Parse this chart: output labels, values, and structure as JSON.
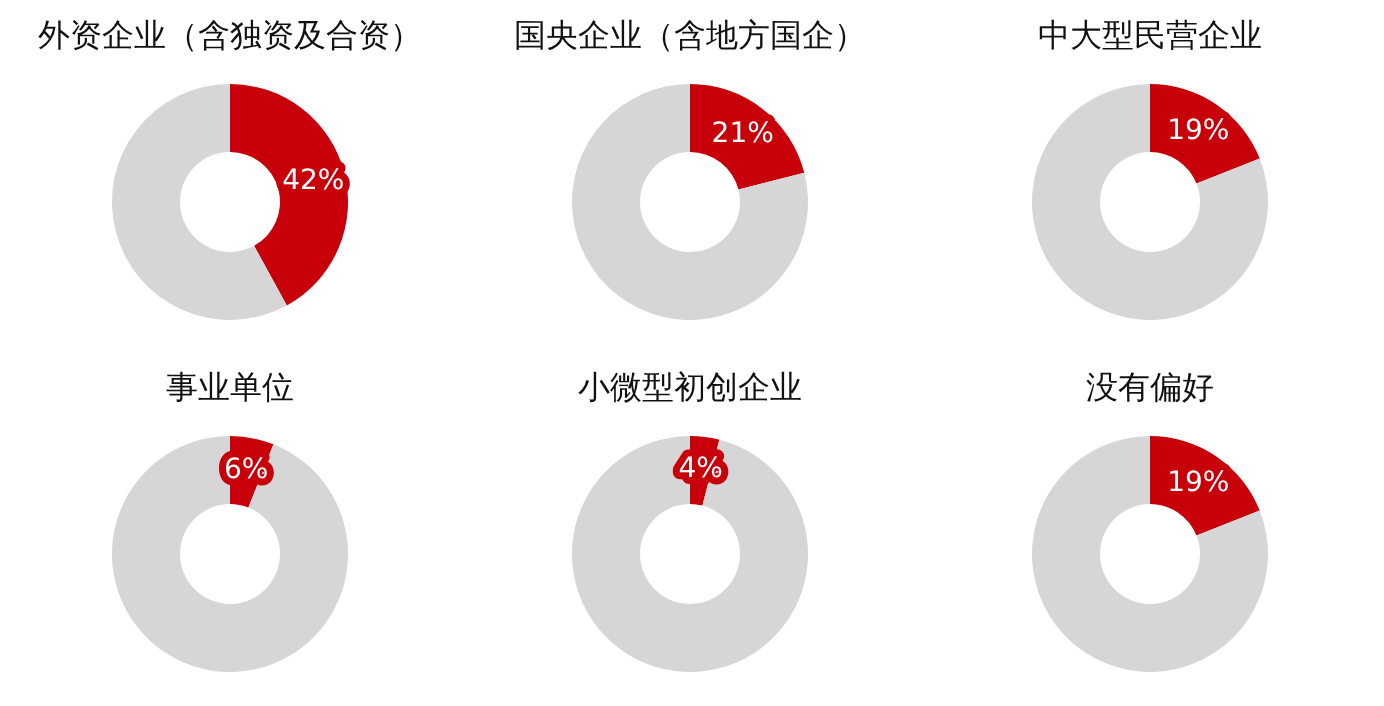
{
  "chart_data": [
    {
      "type": "donut",
      "title": "外资企业（含独资及合资）",
      "categories": [
        null,
        null
      ],
      "values": [
        42,
        58
      ],
      "colors": [
        "#c8000a",
        "#d6d6d6"
      ],
      "value_labels": [
        "42%",
        null
      ]
    },
    {
      "type": "donut",
      "title": "国央企业（含地方国企）",
      "categories": [
        null,
        null
      ],
      "values": [
        21,
        79
      ],
      "colors": [
        "#c8000a",
        "#d6d6d6"
      ],
      "value_labels": [
        "21%",
        null
      ]
    },
    {
      "type": "donut",
      "title": "中大型民营企业",
      "categories": [
        null,
        null
      ],
      "values": [
        19,
        81
      ],
      "colors": [
        "#c8000a",
        "#d6d6d6"
      ],
      "value_labels": [
        "19%",
        null
      ]
    },
    {
      "type": "donut",
      "title": "事业单位",
      "categories": [
        null,
        null
      ],
      "values": [
        6,
        94
      ],
      "colors": [
        "#c8000a",
        "#d6d6d6"
      ],
      "value_labels": [
        "6%",
        null
      ]
    },
    {
      "type": "donut",
      "title": "小微型初创企业",
      "categories": [
        null,
        null
      ],
      "values": [
        4,
        96
      ],
      "colors": [
        "#c8000a",
        "#d6d6d6"
      ],
      "value_labels": [
        "4%",
        null
      ]
    },
    {
      "type": "donut",
      "title": "没有偏好",
      "categories": [
        null,
        null
      ],
      "values": [
        19,
        81
      ],
      "colors": [
        "#c8000a",
        "#d6d6d6"
      ],
      "value_labels": [
        "19%",
        null
      ]
    }
  ]
}
